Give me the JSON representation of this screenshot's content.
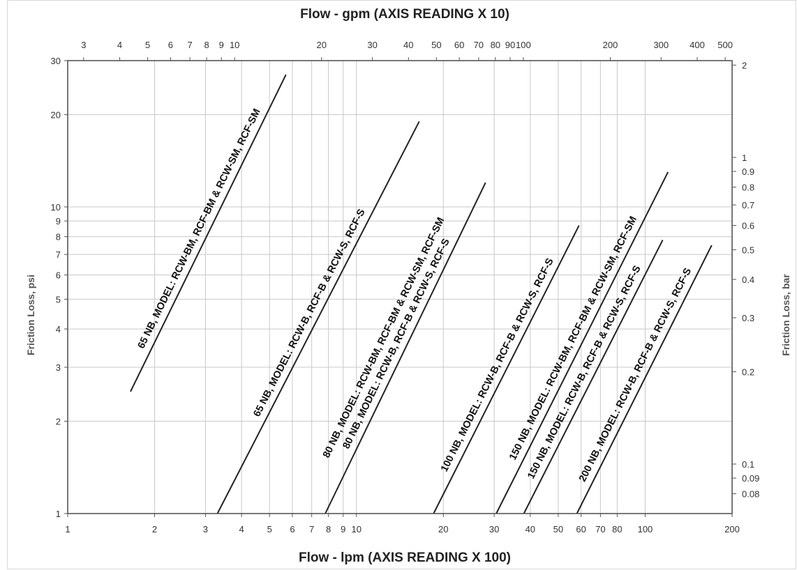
{
  "chart_data": {
    "type": "line",
    "xscale": "log",
    "yscale": "log",
    "grid": true,
    "xlabel_bottom": "Flow - lpm (AXIS READING X 100)",
    "xlabel_top": "Flow - gpm (AXIS READING X 10)",
    "ylabel_left": "Friction Loss, psi",
    "ylabel_right": "Friction Loss, bar",
    "xlim_bottom": [
      1,
      200
    ],
    "ylim_left": [
      1,
      30
    ],
    "x_bottom_ticks": [
      "1",
      "2",
      "3",
      "4",
      "5",
      "6",
      "7",
      "8",
      "9",
      "10",
      "20",
      "30",
      "40",
      "50",
      "60",
      "70",
      "80",
      "100",
      "200"
    ],
    "x_top_ticks": [
      "3",
      "4",
      "5",
      "6",
      "7",
      "8",
      "9",
      "10",
      "20",
      "30",
      "40",
      "50",
      "60",
      "70",
      "80",
      "90",
      "100",
      "200",
      "300",
      "400",
      "500"
    ],
    "y_left_ticks": [
      "1",
      "2",
      "3",
      "4",
      "5",
      "6",
      "7",
      "8",
      "9",
      "10",
      "20",
      "30"
    ],
    "y_right_ticks": [
      "0.08",
      "0.09",
      "0.1",
      "0.2",
      "0.3",
      "0.4",
      "0.5",
      "0.6",
      "0.7",
      "0.8",
      "0.9",
      "1",
      "2"
    ],
    "series": [
      {
        "name": "65 NB, MODEL: RCW-BM, RCF-BM & RCW-SM, RCF-SM",
        "x": [
          1.65,
          5.7
        ],
        "y": [
          2.5,
          27
        ]
      },
      {
        "name": "65 NB, MODEL: RCW-B, RCF-B & RCW-S, RCF-S",
        "x": [
          3.3,
          16.5
        ],
        "y": [
          1.0,
          19
        ]
      },
      {
        "name": "80 NB, MODEL: RCW-B, RCF-B & RCW-S, RCF-S",
        "x": [
          7.8,
          28
        ],
        "y": [
          1.0,
          12
        ]
      },
      {
        "name": "80 NB, MODEL: RCW-BM, RCF-BM & RCW-SM, RCF-SM",
        "x": [
          7.8,
          28
        ],
        "y": [
          1.0,
          12
        ]
      },
      {
        "name": "100 NB, MODEL: RCW-B, RCF-B & RCW-S, RCF-S",
        "x": [
          18.5,
          59
        ],
        "y": [
          1.0,
          8.7
        ]
      },
      {
        "name": "150 NB, MODEL: RCW-BM, RCF-BM & RCW-SM, RCF-SM",
        "x": [
          30.5,
          120
        ],
        "y": [
          1.0,
          13
        ]
      },
      {
        "name": "150 NB, MODEL: RCW-B, RCF-B & RCW-S, RCF-S",
        "x": [
          38,
          115
        ],
        "y": [
          1.0,
          7.8
        ]
      },
      {
        "name": "200 NB, MODEL: RCW-B, RCF-B & RCW-S, RCF-S",
        "x": [
          58,
          170
        ],
        "y": [
          1.0,
          7.5
        ]
      }
    ]
  }
}
